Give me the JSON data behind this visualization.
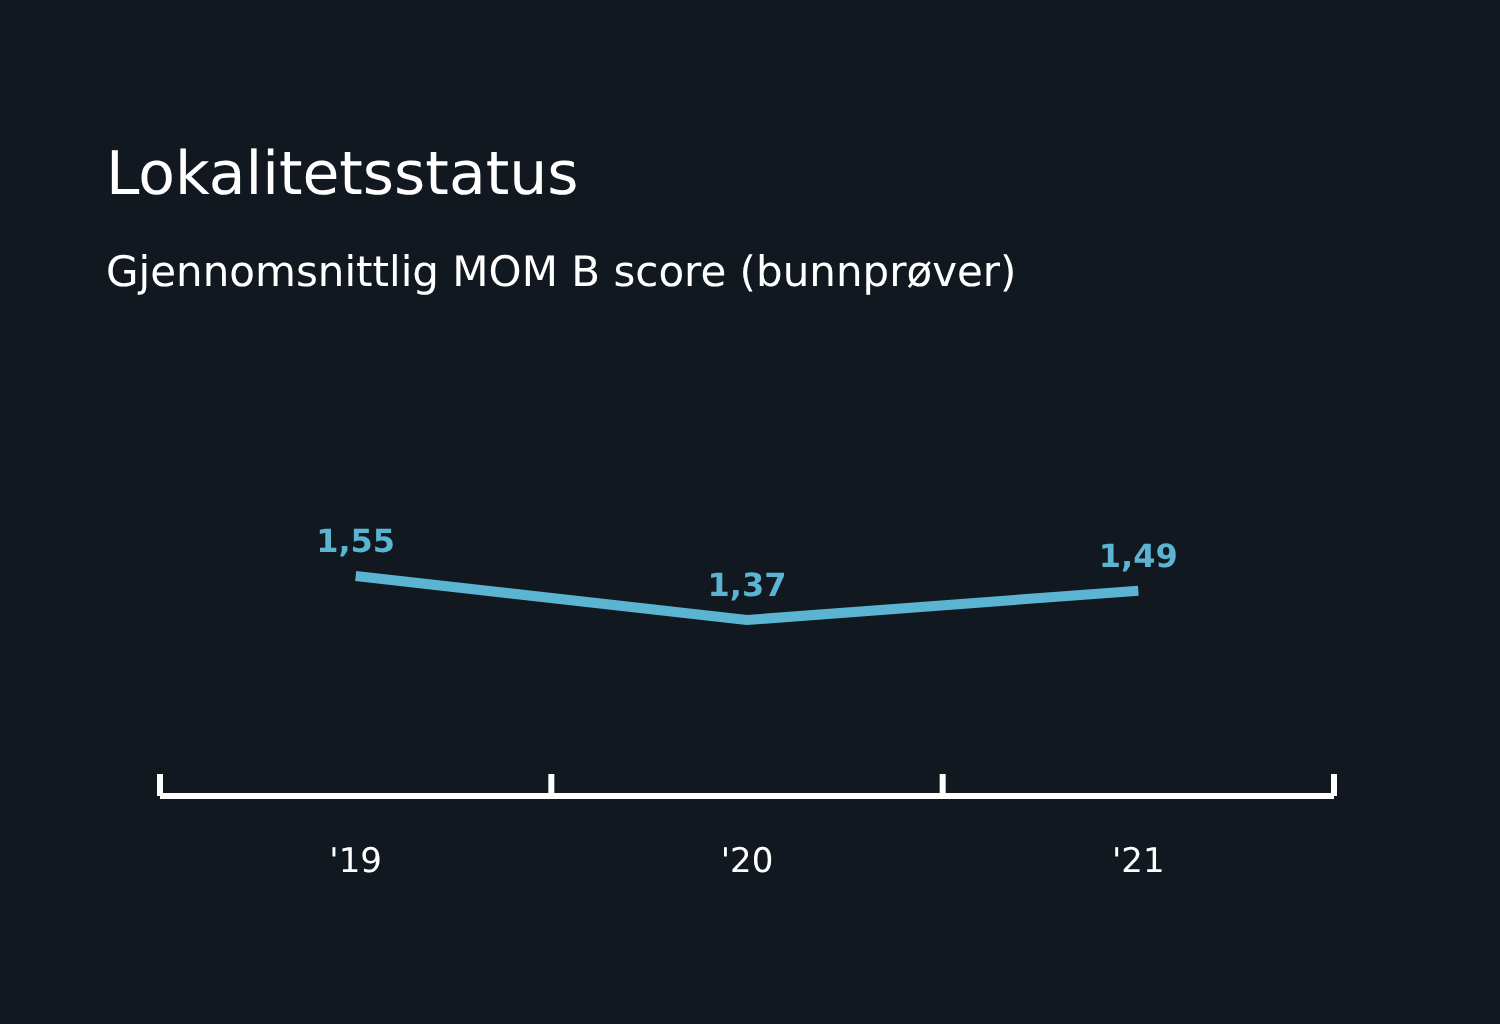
{
  "chart_data": {
    "type": "line",
    "title": "Lokalitetsstatus",
    "subtitle": "Gjennomsnittlig MOM B score (bunnprøver)",
    "categories": [
      "'19",
      "'20",
      "'21"
    ],
    "series": [
      {
        "color": "#5ab4d2",
        "values": [
          1.55,
          1.37,
          1.49
        ],
        "value_labels": [
          "1,55",
          "1,37",
          "1,49"
        ]
      }
    ],
    "marker": "none",
    "line_style": "solid",
    "tick_labels": "x"
  }
}
